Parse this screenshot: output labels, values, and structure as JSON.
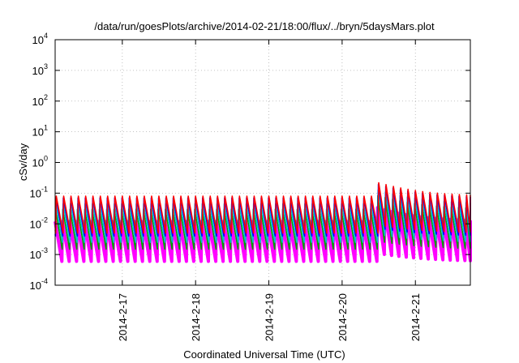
{
  "chart_data": {
    "type": "line",
    "title": "/data/run/goesPlots/archive/2014-02-21/18:00/flux/../bryn/5daysMars.plot",
    "xlabel": "Coordinated Universal Time (UTC)",
    "ylabel": "cSv/day",
    "yscale": "log",
    "ylim": [
      0.0001,
      10000
    ],
    "xlim": [
      "2014-02-16 02:00",
      "2014-02-21 18:00"
    ],
    "grid": true,
    "legend": "none",
    "y_ticks": [
      {
        "base": "10",
        "exp": "-4",
        "value": 0.0001
      },
      {
        "base": "10",
        "exp": "-3",
        "value": 0.001
      },
      {
        "base": "10",
        "exp": "-2",
        "value": 0.01
      },
      {
        "base": "10",
        "exp": "-1",
        "value": 0.1
      },
      {
        "base": "10",
        "exp": "0",
        "value": 1
      },
      {
        "base": "10",
        "exp": "1",
        "value": 10
      },
      {
        "base": "10",
        "exp": "2",
        "value": 100
      },
      {
        "base": "10",
        "exp": "3",
        "value": 1000
      },
      {
        "base": "10",
        "exp": "4",
        "value": 10000
      }
    ],
    "x_ticks": [
      {
        "label": "2014-2-17",
        "value": "2014-02-17 00:00"
      },
      {
        "label": "2014-2-18",
        "value": "2014-02-18 00:00"
      },
      {
        "label": "2014-2-19",
        "value": "2014-02-19 00:00"
      },
      {
        "label": "2014-2-20",
        "value": "2014-02-20 00:00"
      },
      {
        "label": "2014-2-21",
        "value": "2014-02-21 00:00"
      }
    ],
    "sawtooth_period_hours": 2.4,
    "series": [
      {
        "color": "#ff00ff",
        "peak": 0.012,
        "trough": 0.0006
      },
      {
        "color": "#00a000",
        "peak": 0.03,
        "trough": 0.0015
      },
      {
        "color": "#00c8c8",
        "peak": 0.045,
        "trough": 0.0025
      },
      {
        "color": "#0000ff",
        "peak": 0.07,
        "trough": 0.004
      },
      {
        "color": "#ff0000",
        "peak": 0.08,
        "trough": 0.005
      }
    ],
    "annotations": [
      {
        "date": "2014-02-20 10:00",
        "peak": 0.25
      }
    ]
  }
}
